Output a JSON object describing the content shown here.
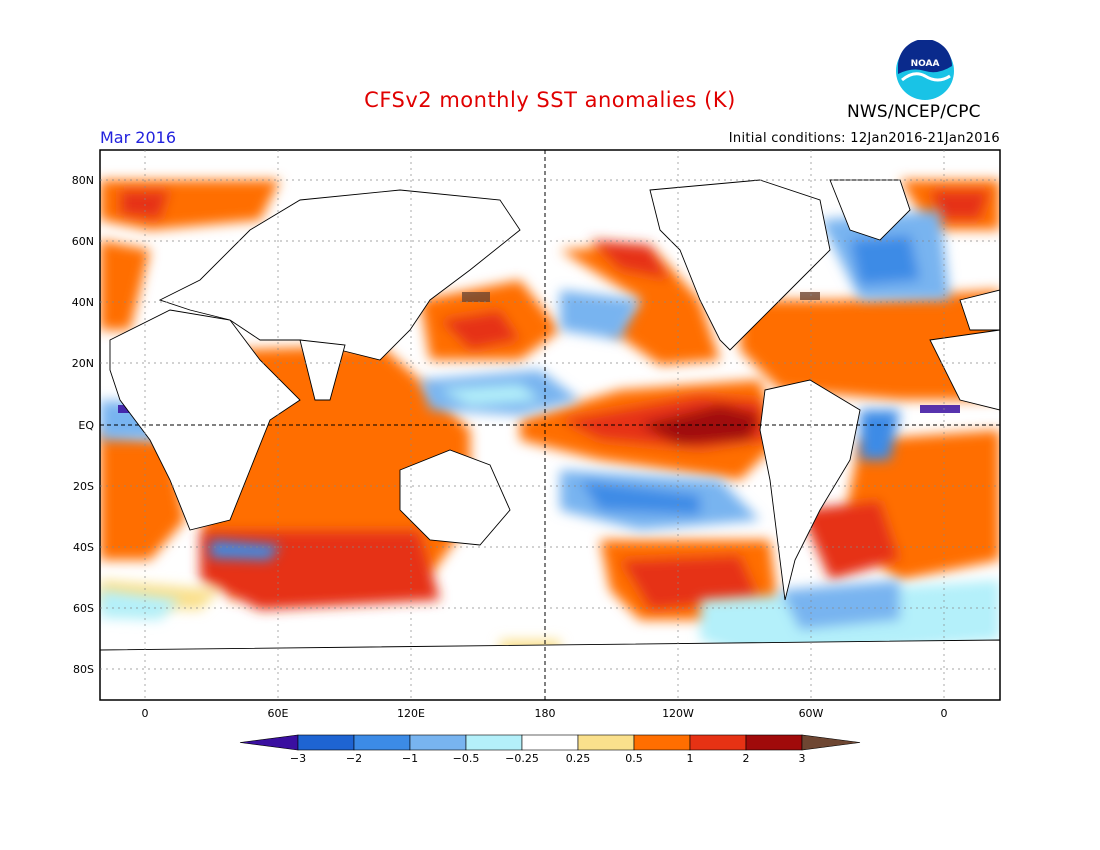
{
  "header": {
    "title": "CFSv2 monthly SST anomalies (K)",
    "period": "Mar 2016",
    "initial_conditions": "Initial conditions: 12Jan2016-21Jan2016",
    "agency": "NWS/NCEP/CPC",
    "logo_text": "NOAA"
  },
  "map": {
    "y_ticks": [
      "80N",
      "60N",
      "40N",
      "20N",
      "EQ",
      "20S",
      "40S",
      "60S",
      "80S"
    ],
    "x_ticks": [
      "0",
      "60E",
      "120E",
      "180",
      "120W",
      "60W",
      "0"
    ]
  },
  "colorbar": {
    "labels": [
      "-3",
      "-2",
      "-1",
      "-0.5",
      "-0.25",
      "0.25",
      "0.5",
      "1",
      "2",
      "3"
    ],
    "colors": [
      "#3a0fa0",
      "#1e64d2",
      "#3c8be6",
      "#78b4f0",
      "#b4f0fa",
      "#ffffff",
      "#fae08c",
      "#ff6e00",
      "#e63214",
      "#a00a0a",
      "#6e4632"
    ]
  }
}
